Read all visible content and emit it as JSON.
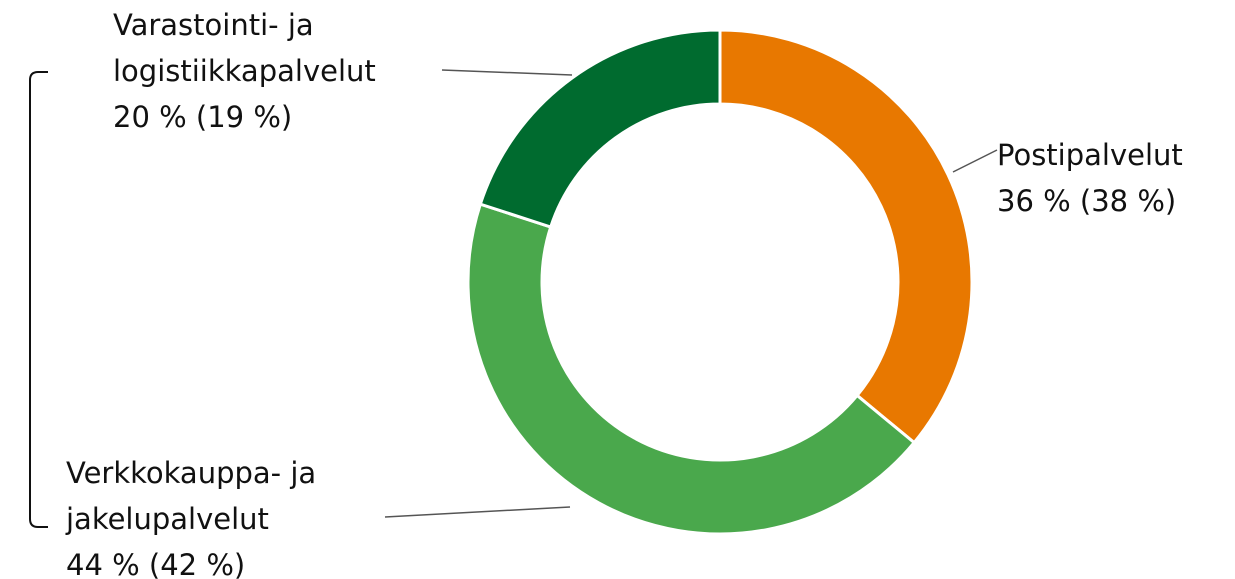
{
  "chart_data": {
    "type": "donut",
    "categories": [
      "Postipalvelut",
      "Verkkokauppa- ja jakelupalvelut",
      "Varastointi- ja logistiikkapalvelut"
    ],
    "values": [
      36,
      44,
      20
    ],
    "value_labels": [
      "36 % (38 %)",
      "44 % (42 %)",
      "20 % (19 %)"
    ],
    "colors": [
      "#e87800",
      "#4aa84c",
      "#006b2f"
    ]
  }
}
